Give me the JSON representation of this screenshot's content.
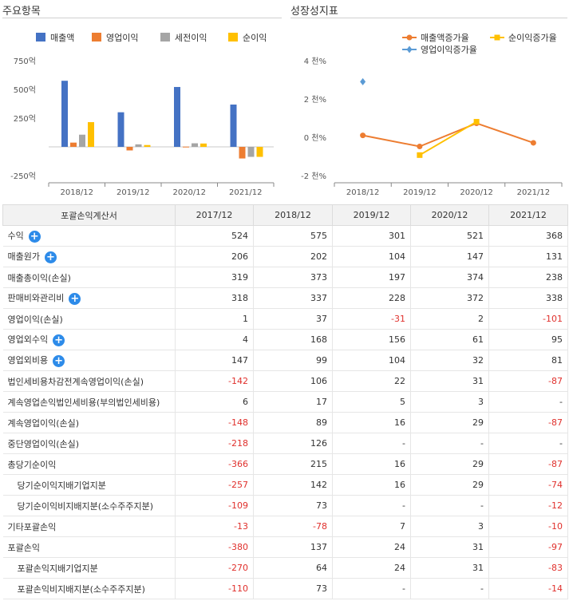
{
  "panels": {
    "left_title": "주요항목",
    "right_title": "성장성지표"
  },
  "chart_data": [
    {
      "type": "bar",
      "categories": [
        "2018/12",
        "2019/12",
        "2020/12",
        "2021/12"
      ],
      "series": [
        {
          "name": "매출액",
          "color": "#4472c4",
          "values": [
            575,
            301,
            521,
            368
          ]
        },
        {
          "name": "영업이익",
          "color": "#ed7d31",
          "values": [
            37,
            -31,
            2,
            -101
          ]
        },
        {
          "name": "세전이익",
          "color": "#a5a5a5",
          "values": [
            106,
            22,
            31,
            -87
          ]
        },
        {
          "name": "순이익",
          "color": "#ffc000",
          "values": [
            215,
            16,
            29,
            -87
          ]
        }
      ],
      "ylim": [
        -250,
        750
      ],
      "yticks": [
        -250,
        250,
        500,
        750
      ],
      "ytick_labels": [
        "-250억",
        "250억",
        "500억",
        "750억"
      ],
      "legend": "top",
      "grid": false
    },
    {
      "type": "line",
      "categories": [
        "2018/12",
        "2019/12",
        "2020/12",
        "2021/12"
      ],
      "series": [
        {
          "name": "매출액증가율",
          "color": "#ed7d31",
          "marker": "circle",
          "values": [
            0.1,
            -0.48,
            0.73,
            -0.29
          ]
        },
        {
          "name": "순이익증가율",
          "color": "#ffc000",
          "marker": "square",
          "values": [
            null,
            -0.93,
            0.81,
            null
          ]
        },
        {
          "name": "영업이익증가율",
          "color": "#5b9bd5",
          "marker": "diamond",
          "values": [
            2.9,
            null,
            null,
            null
          ]
        }
      ],
      "ylim": [
        -2,
        4
      ],
      "yticks": [
        -2,
        0,
        2,
        4
      ],
      "ytick_labels": [
        "-2 천%",
        "0 천%",
        "2 천%",
        "4 천%"
      ],
      "legend": "top",
      "grid": false
    }
  ],
  "table": {
    "headers": [
      "포괄손익계산서",
      "2017/12",
      "2018/12",
      "2019/12",
      "2020/12",
      "2021/12"
    ],
    "rows": [
      {
        "label": "수익",
        "plus": true,
        "indent": false,
        "values": [
          "524",
          "575",
          "301",
          "521",
          "368"
        ]
      },
      {
        "label": "매출원가",
        "plus": true,
        "indent": false,
        "values": [
          "206",
          "202",
          "104",
          "147",
          "131"
        ]
      },
      {
        "label": "매출총이익(손실)",
        "plus": false,
        "indent": false,
        "values": [
          "319",
          "373",
          "197",
          "374",
          "238"
        ]
      },
      {
        "label": "판매비와관리비",
        "plus": true,
        "indent": false,
        "values": [
          "318",
          "337",
          "228",
          "372",
          "338"
        ]
      },
      {
        "label": "영업이익(손실)",
        "plus": false,
        "indent": false,
        "values": [
          "1",
          "37",
          "-31",
          "2",
          "-101"
        ]
      },
      {
        "label": "영업외수익",
        "plus": true,
        "indent": false,
        "values": [
          "4",
          "168",
          "156",
          "61",
          "95"
        ]
      },
      {
        "label": "영업외비용",
        "plus": true,
        "indent": false,
        "values": [
          "147",
          "99",
          "104",
          "32",
          "81"
        ]
      },
      {
        "label": "법인세비용차감전계속영업이익(손실)",
        "plus": false,
        "indent": false,
        "values": [
          "-142",
          "106",
          "22",
          "31",
          "-87"
        ]
      },
      {
        "label": "계속영업손익법인세비용(부의법인세비용)",
        "plus": false,
        "indent": false,
        "values": [
          "6",
          "17",
          "5",
          "3",
          "-"
        ]
      },
      {
        "label": "계속영업이익(손실)",
        "plus": false,
        "indent": false,
        "values": [
          "-148",
          "89",
          "16",
          "29",
          "-87"
        ]
      },
      {
        "label": "중단영업이익(손실)",
        "plus": false,
        "indent": false,
        "values": [
          "-218",
          "126",
          "-",
          "-",
          "-"
        ]
      },
      {
        "label": "총당기순이익",
        "plus": false,
        "indent": false,
        "values": [
          "-366",
          "215",
          "16",
          "29",
          "-87"
        ]
      },
      {
        "label": "당기순이익지배기업지분",
        "plus": false,
        "indent": true,
        "values": [
          "-257",
          "142",
          "16",
          "29",
          "-74"
        ]
      },
      {
        "label": "당기순이익비지배지분(소수주주지분)",
        "plus": false,
        "indent": true,
        "values": [
          "-109",
          "73",
          "-",
          "-",
          "-12"
        ]
      },
      {
        "label": "기타포괄손익",
        "plus": false,
        "indent": false,
        "values": [
          "-13",
          "-78",
          "7",
          "3",
          "-10"
        ]
      },
      {
        "label": "포괄손익",
        "plus": false,
        "indent": false,
        "values": [
          "-380",
          "137",
          "24",
          "31",
          "-97"
        ]
      },
      {
        "label": "포괄손익지배기업지분",
        "plus": false,
        "indent": true,
        "values": [
          "-270",
          "64",
          "24",
          "31",
          "-83"
        ]
      },
      {
        "label": "포괄손익비지배지분(소수주주지분)",
        "plus": false,
        "indent": true,
        "values": [
          "-110",
          "73",
          "-",
          "-",
          "-14"
        ]
      }
    ]
  }
}
